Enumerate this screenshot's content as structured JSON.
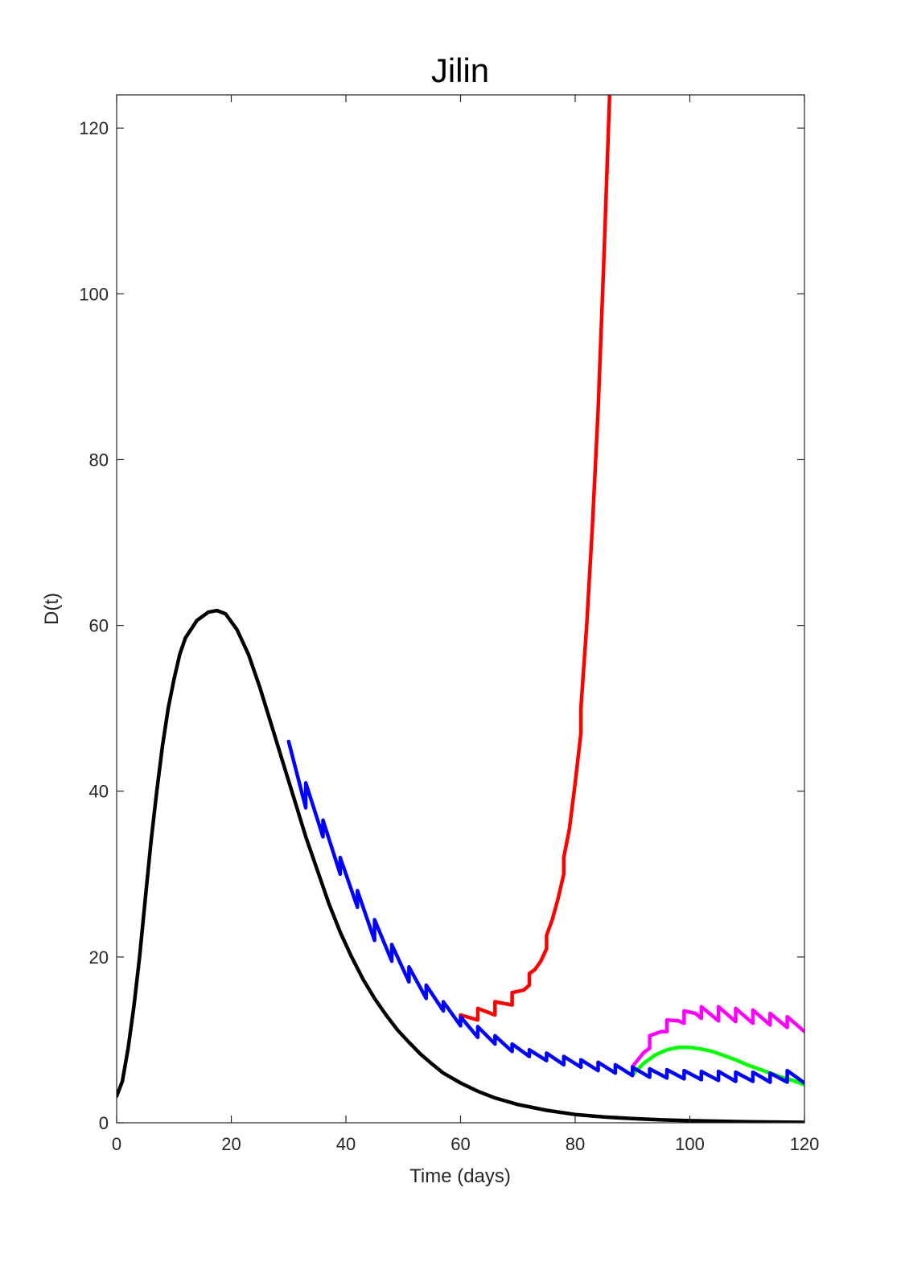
{
  "chart_data": {
    "type": "line",
    "title": "Jilin",
    "xlabel": "Time (days)",
    "ylabel": "D(t)",
    "xlim": [
      0,
      120
    ],
    "ylim": [
      0,
      124
    ],
    "xticks": [
      0,
      20,
      40,
      60,
      80,
      100,
      120
    ],
    "yticks": [
      0,
      20,
      40,
      60,
      80,
      100,
      120
    ],
    "grid": false,
    "legend": "none",
    "series": [
      {
        "color": "#000000",
        "points": [
          [
            0,
            3.2
          ],
          [
            1,
            5
          ],
          [
            2,
            9
          ],
          [
            3,
            14
          ],
          [
            4,
            20
          ],
          [
            5,
            27
          ],
          [
            6,
            34
          ],
          [
            7,
            40
          ],
          [
            8,
            45.5
          ],
          [
            9,
            50
          ],
          [
            10,
            53.5
          ],
          [
            11,
            56.5
          ],
          [
            12,
            58.5
          ],
          [
            14,
            60.6
          ],
          [
            16,
            61.6
          ],
          [
            17.5,
            61.8
          ],
          [
            19,
            61.4
          ],
          [
            21,
            59.5
          ],
          [
            23,
            56.5
          ],
          [
            25,
            52.5
          ],
          [
            27,
            48
          ],
          [
            29,
            43.5
          ],
          [
            31,
            39
          ],
          [
            33,
            34.5
          ],
          [
            35,
            30.5
          ],
          [
            37,
            26.5
          ],
          [
            39,
            23
          ],
          [
            41,
            20
          ],
          [
            43,
            17.3
          ],
          [
            45,
            15
          ],
          [
            47,
            13
          ],
          [
            49,
            11.2
          ],
          [
            51,
            9.7
          ],
          [
            53,
            8.3
          ],
          [
            55,
            7.1
          ],
          [
            57,
            6
          ],
          [
            60,
            4.8
          ],
          [
            63,
            3.8
          ],
          [
            66,
            3
          ],
          [
            70,
            2.2
          ],
          [
            75,
            1.5
          ],
          [
            80,
            1
          ],
          [
            85,
            0.7
          ],
          [
            90,
            0.5
          ],
          [
            95,
            0.35
          ],
          [
            100,
            0.25
          ],
          [
            110,
            0.12
          ],
          [
            120,
            0.05
          ]
        ]
      },
      {
        "color": "#0000ff",
        "points": [
          [
            30,
            46
          ],
          [
            33,
            38
          ],
          [
            33,
            41
          ],
          [
            36,
            34.5
          ],
          [
            36,
            36.5
          ],
          [
            39,
            30
          ],
          [
            39,
            32
          ],
          [
            42,
            26
          ],
          [
            42,
            28
          ],
          [
            45,
            22
          ],
          [
            45,
            24.5
          ],
          [
            48,
            19.5
          ],
          [
            48,
            21.5
          ],
          [
            51,
            17
          ],
          [
            51,
            18.8
          ],
          [
            54,
            15
          ],
          [
            54,
            16.6
          ],
          [
            57,
            13.5
          ],
          [
            57,
            14.6
          ],
          [
            60,
            11.7
          ],
          [
            60,
            12.8
          ],
          [
            63,
            10.3
          ],
          [
            63,
            11.6
          ],
          [
            66,
            9.5
          ],
          [
            66,
            10.5
          ],
          [
            69,
            8.6
          ],
          [
            69,
            9.5
          ],
          [
            72,
            8
          ],
          [
            72,
            8.8
          ],
          [
            75,
            7.5
          ],
          [
            75,
            8.4
          ],
          [
            78,
            7
          ],
          [
            78,
            8
          ],
          [
            81,
            6.7
          ],
          [
            81,
            7.6
          ],
          [
            84,
            6.3
          ],
          [
            84,
            7.3
          ],
          [
            87,
            6
          ],
          [
            87,
            7
          ],
          [
            90,
            5.7
          ],
          [
            90,
            6.7
          ],
          [
            93,
            5.5
          ],
          [
            93,
            6.5
          ],
          [
            96,
            5.4
          ],
          [
            96,
            6.4
          ],
          [
            99,
            5.3
          ],
          [
            99,
            6.3
          ],
          [
            102,
            5.2
          ],
          [
            102,
            6.2
          ],
          [
            105,
            5.1
          ],
          [
            105,
            6.2
          ],
          [
            108,
            5
          ],
          [
            108,
            6.1
          ],
          [
            111,
            5
          ],
          [
            111,
            6.1
          ],
          [
            114,
            4.9
          ],
          [
            114,
            6
          ],
          [
            117,
            4.9
          ],
          [
            117,
            6.3
          ],
          [
            120,
            4.8
          ]
        ]
      },
      {
        "color": "#ff0000",
        "points": [
          [
            60,
            13
          ],
          [
            63,
            12.4
          ],
          [
            63,
            13.8
          ],
          [
            66,
            13
          ],
          [
            66,
            14.6
          ],
          [
            69,
            14.2
          ],
          [
            69,
            15.7
          ],
          [
            71,
            16
          ],
          [
            72,
            16.6
          ],
          [
            72,
            18
          ],
          [
            73,
            18.5
          ],
          [
            74,
            19.5
          ],
          [
            75,
            21
          ],
          [
            75,
            22.6
          ],
          [
            76,
            24.5
          ],
          [
            77,
            27
          ],
          [
            78,
            30
          ],
          [
            78,
            32
          ],
          [
            79,
            35.5
          ],
          [
            80,
            41
          ],
          [
            81,
            47
          ],
          [
            81,
            50
          ],
          [
            82,
            60
          ],
          [
            83,
            72
          ],
          [
            84,
            86
          ],
          [
            85,
            104
          ],
          [
            86,
            124
          ]
        ]
      },
      {
        "color": "#ff00ff",
        "points": [
          [
            90,
            6.8
          ],
          [
            92,
            8.5
          ],
          [
            93,
            9
          ],
          [
            93,
            10.5
          ],
          [
            95,
            11
          ],
          [
            96,
            11
          ],
          [
            96,
            12.4
          ],
          [
            98,
            12.3
          ],
          [
            99,
            12
          ],
          [
            99,
            13.5
          ],
          [
            101,
            13.2
          ],
          [
            102,
            12.6
          ],
          [
            102,
            14
          ],
          [
            105,
            12.3
          ],
          [
            105,
            14
          ],
          [
            108,
            12.2
          ],
          [
            108,
            13.8
          ],
          [
            111,
            12
          ],
          [
            111,
            13.6
          ],
          [
            114,
            11.8
          ],
          [
            114,
            13.2
          ],
          [
            117,
            11.5
          ],
          [
            117,
            12.8
          ],
          [
            120,
            11
          ]
        ]
      },
      {
        "color": "#00ff00",
        "points": [
          [
            90,
            5.8
          ],
          [
            92,
            7.2
          ],
          [
            94,
            8.2
          ],
          [
            96,
            8.8
          ],
          [
            98,
            9.1
          ],
          [
            100,
            9.1
          ],
          [
            102,
            8.9
          ],
          [
            104,
            8.6
          ],
          [
            106,
            8.1
          ],
          [
            108,
            7.6
          ],
          [
            110,
            7
          ],
          [
            112,
            6.5
          ],
          [
            114,
            6
          ],
          [
            116,
            5.5
          ],
          [
            118,
            5.1
          ],
          [
            120,
            4.6
          ]
        ]
      }
    ]
  }
}
